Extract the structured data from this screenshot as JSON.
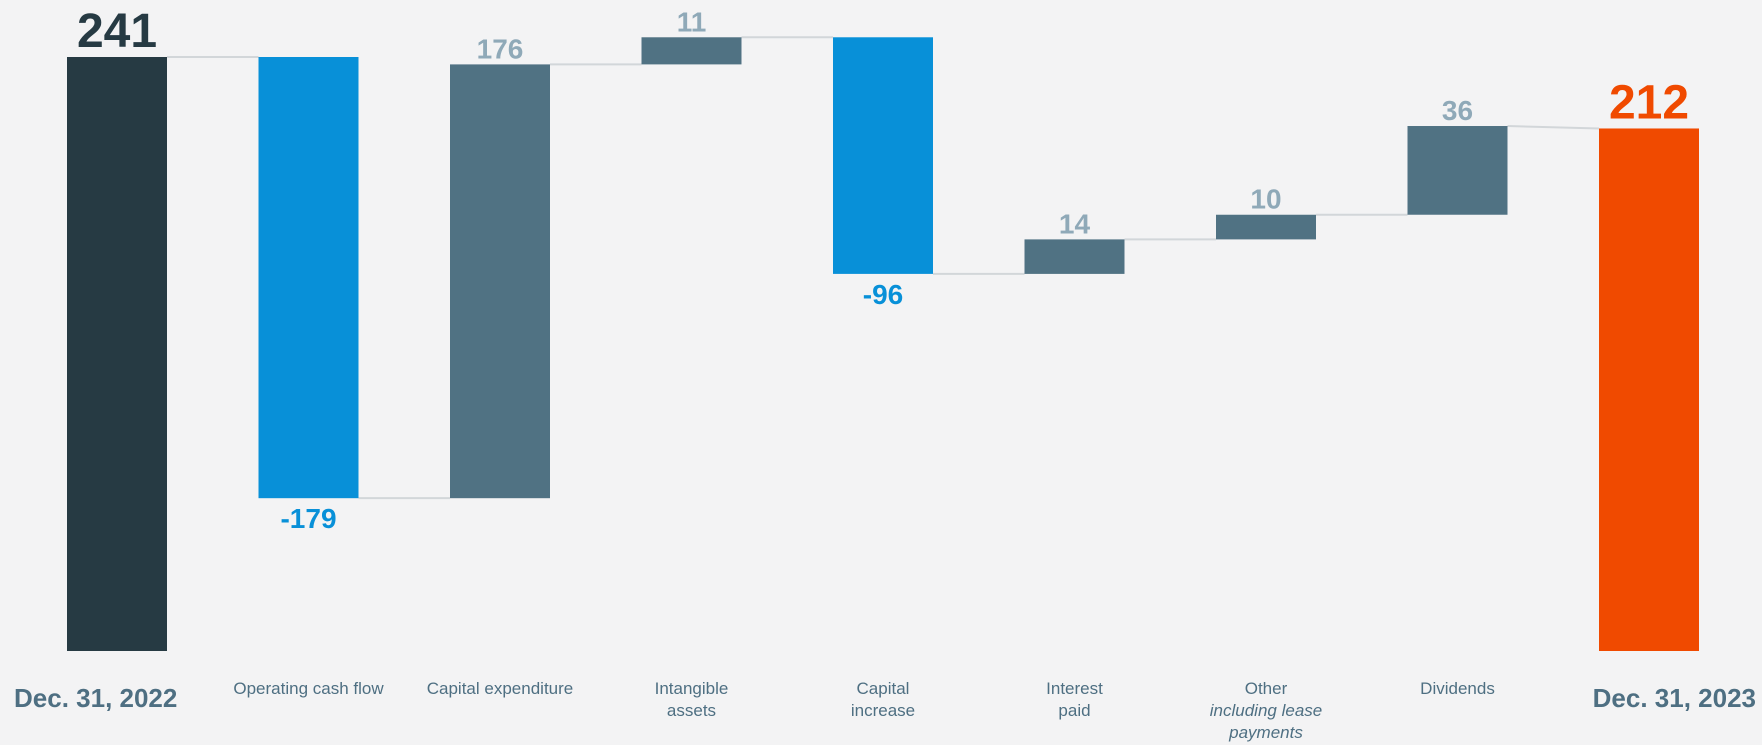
{
  "chart_data": {
    "type": "bar",
    "subtype": "waterfall",
    "title": "",
    "xlabel": "",
    "ylabel": "",
    "categories": [
      {
        "label": "Dec. 31, 2022",
        "sub": "",
        "kind": "total",
        "value": 241,
        "display": "241"
      },
      {
        "label": "Operating cash flow",
        "sub": "",
        "kind": "delta",
        "value": -179,
        "display": "-179"
      },
      {
        "label": "Capital expenditure",
        "sub": "",
        "kind": "delta",
        "value": 176,
        "display": "176"
      },
      {
        "label": "Intangible\nassets",
        "sub": "",
        "kind": "delta",
        "value": 11,
        "display": "11"
      },
      {
        "label": "Capital\nincrease",
        "sub": "",
        "kind": "delta",
        "value": -96,
        "display": "-96"
      },
      {
        "label": "Interest\npaid",
        "sub": "",
        "kind": "delta",
        "value": 14,
        "display": "14"
      },
      {
        "label": "Other",
        "sub": "including lease\npayments",
        "kind": "delta",
        "value": 10,
        "display": "10"
      },
      {
        "label": "Dividends",
        "sub": "",
        "kind": "delta",
        "value": 36,
        "display": "36"
      },
      {
        "label": "Dec. 31, 2023",
        "sub": "",
        "kind": "total",
        "value": 212,
        "display": "212"
      }
    ],
    "ylim": [
      0,
      241
    ],
    "grid": false,
    "legend": "none",
    "colors": {
      "start_total": "#263a43",
      "end_total": "#f04a00",
      "decrease": "#0890d8",
      "increase": "#507283",
      "increase_label": "#8fa9b8",
      "start_label": "#263a43",
      "end_label": "#f04a00",
      "decrease_label": "#0890d8",
      "category_label": "#4e6f82",
      "connector": "#d2d6d9",
      "background": "#f3f3f4"
    }
  }
}
